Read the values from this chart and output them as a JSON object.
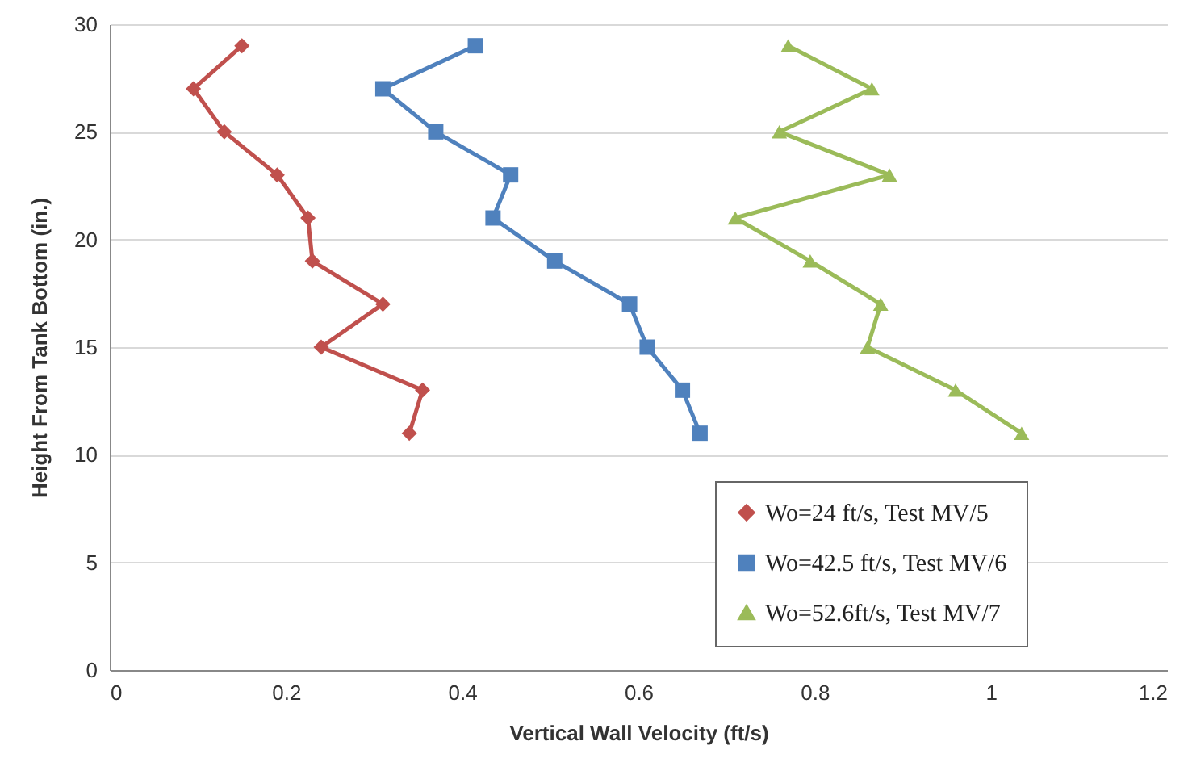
{
  "chart_data": {
    "type": "line",
    "xlabel": "Vertical Wall Velocity (ft/s)",
    "ylabel": "Height From Tank Bottom (in.)",
    "xlim": [
      0,
      1.2
    ],
    "xticks": [
      0,
      0.2,
      0.4,
      0.6,
      0.8,
      1,
      1.2
    ],
    "ylim": [
      0,
      30
    ],
    "yticks": [
      0,
      5,
      10,
      15,
      20,
      25,
      30
    ],
    "grid": "y",
    "legend": "bottom right",
    "line_style": "solid",
    "series": [
      {
        "name": "Wo=24 ft/s, Test MV/5",
        "color": "#c0504d",
        "marker": "diamond",
        "x": [
          0.34,
          0.355,
          0.24,
          0.31,
          0.23,
          0.225,
          0.19,
          0.13,
          0.095,
          0.15
        ],
        "values": [
          11,
          13,
          15,
          17,
          19,
          21,
          23,
          25,
          27,
          29
        ]
      },
      {
        "name": "Wo=42.5 ft/s, Test MV/6",
        "color": "#4f81bd",
        "marker": "square",
        "x": [
          0.67,
          0.65,
          0.61,
          0.59,
          0.505,
          0.435,
          0.455,
          0.37,
          0.31,
          0.415
        ],
        "values": [
          11,
          13,
          15,
          17,
          19,
          21,
          23,
          25,
          27,
          29
        ]
      },
      {
        "name": "Wo=52.6ft/s, Test MV/7",
        "color": "#9bbb59",
        "marker": "triangle",
        "x": [
          1.035,
          0.96,
          0.86,
          0.875,
          0.795,
          0.71,
          0.885,
          0.76,
          0.865,
          0.77
        ],
        "values": [
          11,
          13,
          15,
          17,
          19,
          21,
          23,
          25,
          27,
          29
        ]
      }
    ]
  }
}
